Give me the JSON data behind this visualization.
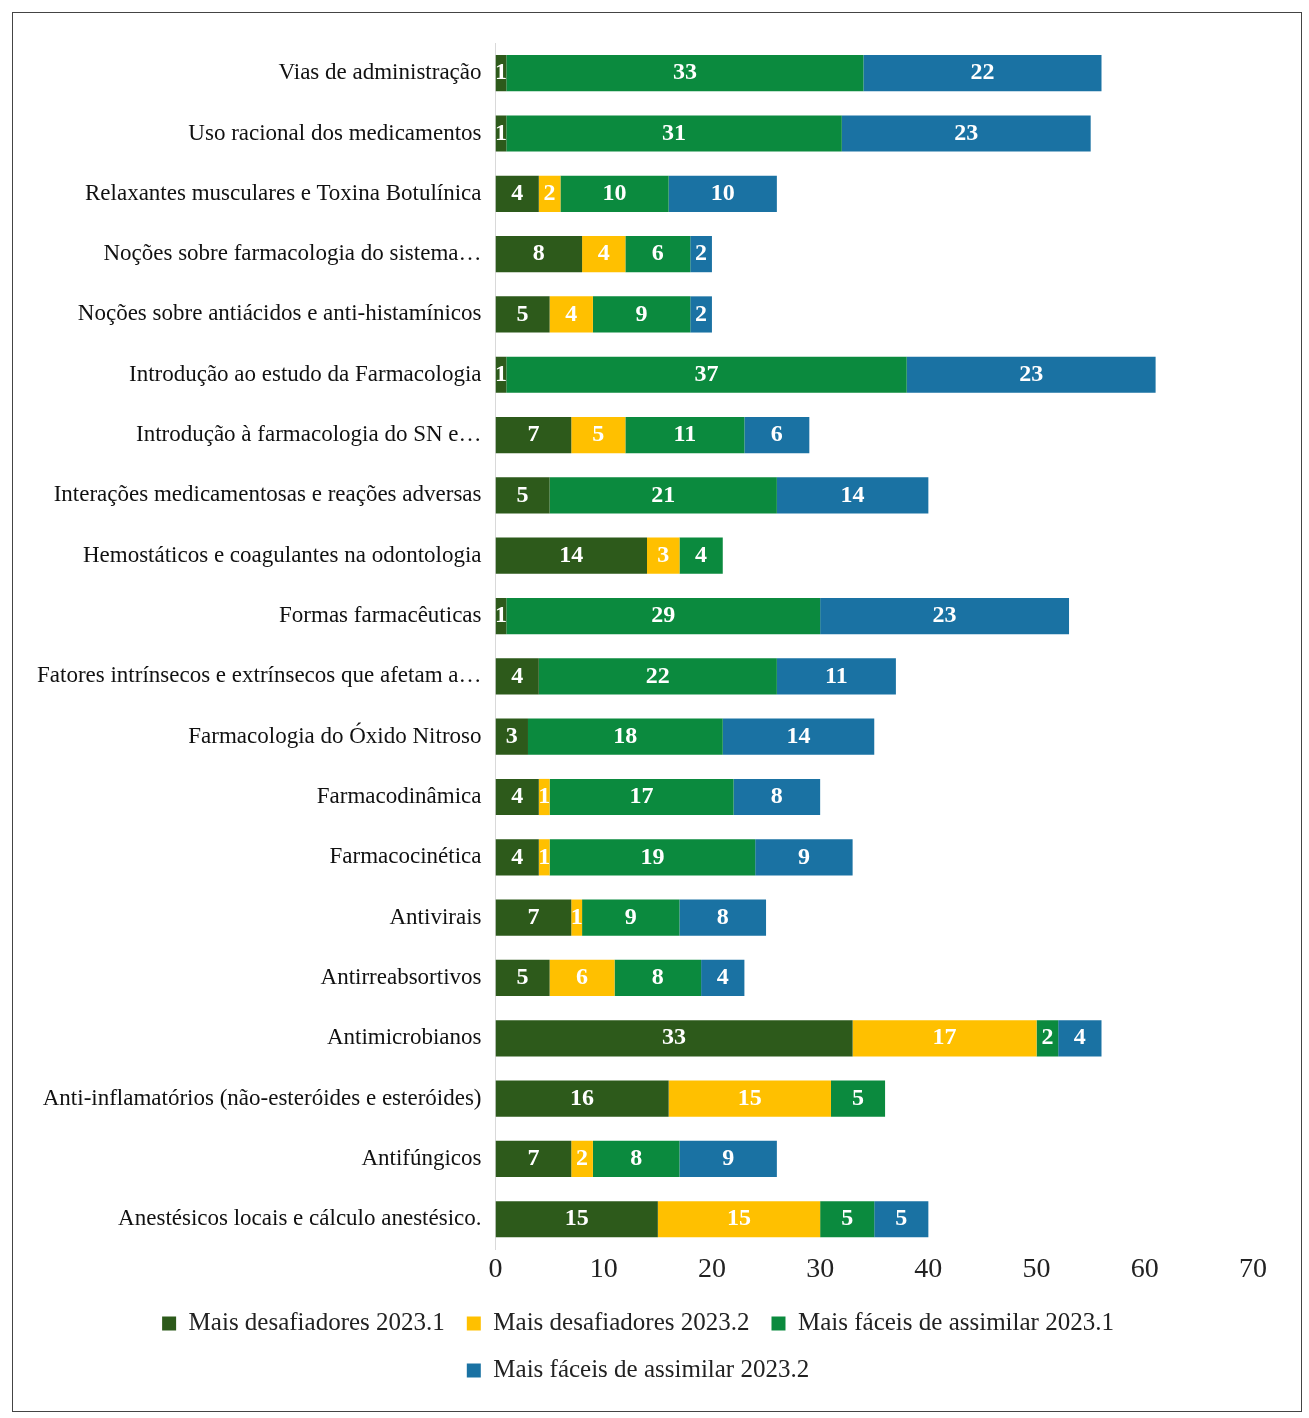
{
  "chart_data": {
    "type": "bar",
    "orientation": "horizontal",
    "stacked": true,
    "data_labels": true,
    "grid": false,
    "legend": "bottom",
    "categories": [
      "Vias de administração",
      "Uso racional dos medicamentos",
      "Relaxantes musculares e Toxina Botulínica",
      "Noções sobre farmacologia do sistema…",
      "Noções sobre antiácidos e anti-histamínicos",
      "Introdução ao estudo da Farmacologia",
      "Introdução à farmacologia do SN e…",
      "Interações medicamentosas e reações adversas",
      "Hemostáticos e coagulantes na odontologia",
      "Formas farmacêuticas",
      "Fatores intrínsecos e extrínsecos que afetam a…",
      "Farmacologia do Óxido Nitroso",
      "Farmacodinâmica",
      "Farmacocinética",
      "Antivirais",
      "Antirreabsortivos",
      "Antimicrobianos",
      "Anti-inflamatórios (não-esteróides e esteróides)",
      "Antifúngicos",
      "Anestésicos locais e cálculo anestésico."
    ],
    "series": [
      {
        "name": "Mais desafiadores 2023.1",
        "color": "#2d5a1b",
        "values": [
          1,
          1,
          4,
          8,
          5,
          1,
          7,
          5,
          14,
          1,
          4,
          3,
          4,
          4,
          7,
          5,
          33,
          16,
          7,
          15
        ]
      },
      {
        "name": "Mais desafiadores 2023.2",
        "color": "#ffc000",
        "values": [
          null,
          null,
          2,
          4,
          4,
          null,
          5,
          null,
          3,
          null,
          null,
          null,
          1,
          1,
          1,
          6,
          17,
          15,
          2,
          15
        ]
      },
      {
        "name": "Mais fáceis de assimilar 2023.1",
        "color": "#0b8a3e",
        "values": [
          33,
          31,
          10,
          6,
          9,
          37,
          11,
          21,
          4,
          29,
          22,
          18,
          17,
          19,
          9,
          8,
          2,
          5,
          8,
          5
        ]
      },
      {
        "name": "Mais fáceis de assimilar 2023.2",
        "color": "#1a72a3",
        "values": [
          22,
          23,
          10,
          2,
          2,
          23,
          6,
          14,
          null,
          23,
          11,
          14,
          8,
          9,
          8,
          4,
          4,
          null,
          9,
          5
        ]
      }
    ],
    "xlim": [
      0,
      70
    ],
    "xticks": [
      0,
      10,
      20,
      30,
      40,
      50,
      60,
      70
    ]
  }
}
